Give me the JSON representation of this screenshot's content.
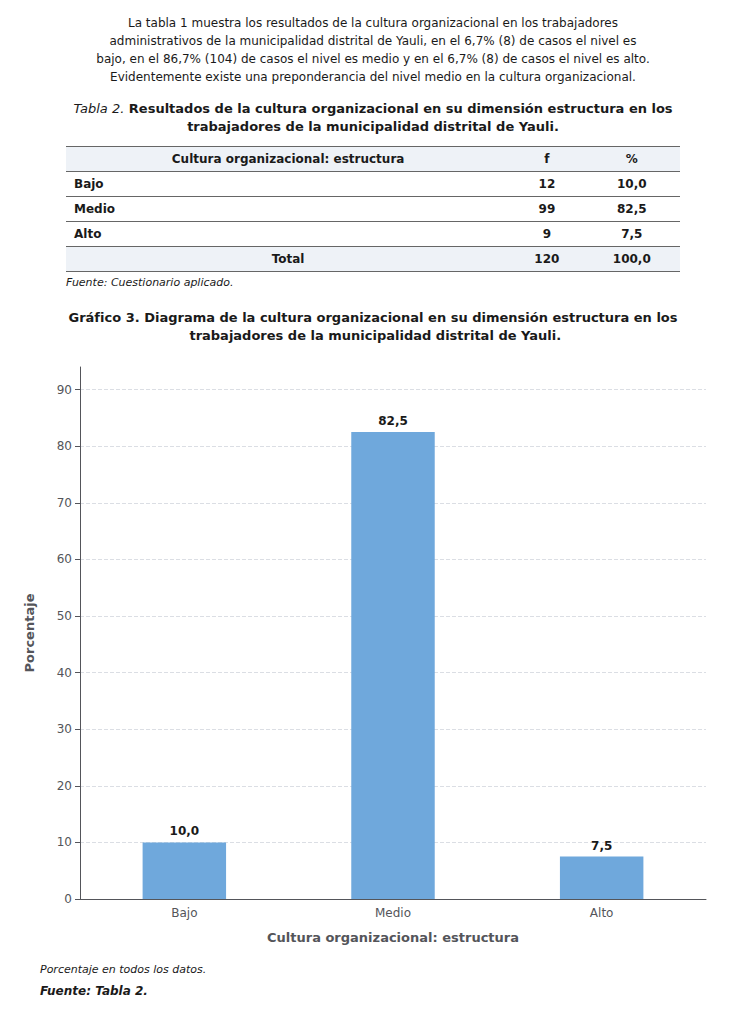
{
  "page": {
    "paragraph": [
      "La tabla 1 muestra los resultados de la cultura organizacional en los trabajadores",
      "administrativos de la municipalidad distrital de Yauli, en el 6,7% (8) de casos el nivel es",
      "bajo, en el 86,7% (104) de casos el nivel es medio y en el 6,7% (8) de casos el nivel es alto.",
      "Evidentemente existe una preponderancia del nivel medio en la cultura organizacional."
    ],
    "table": {
      "title": "Tabla 2. Resultados de la cultura organizacional en su dimensión estructura en los trabajadores de la municipalidad distrital de Yauli.",
      "header": [
        "Cultura organizacional: estructura",
        "f",
        "%"
      ],
      "rows": [
        [
          "Bajo",
          "12",
          "10,0"
        ],
        [
          "Medio",
          "99",
          "82,5"
        ],
        [
          "Alto",
          "9",
          "7,5"
        ]
      ],
      "total": [
        "Total",
        "120",
        "100,0"
      ],
      "source": "Fuente: Cuestionario aplicado."
    }
  },
  "chart_data": {
    "type": "bar",
    "title": "Gráfico 3. Diagrama de la cultura organizacional en su dimensión estructura en los trabajadores de la municipalidad distrital de Yauli.",
    "xlabel": "Cultura organizacional: estructura",
    "ylabel": "Porcentaje",
    "categories": [
      "Bajo",
      "Medio",
      "Alto"
    ],
    "values": [
      10.0,
      82.5,
      7.5
    ],
    "value_labels": [
      "10,0",
      "82,5",
      "7,5"
    ],
    "data_labels": true,
    "color": "#6fa8dc",
    "ylim": [
      0,
      94
    ],
    "yticks": [
      0,
      10,
      20,
      30,
      40,
      50,
      60,
      70,
      80,
      90
    ],
    "grid": true,
    "annotations": [
      "Porcentaje en todos los datos.",
      "Fuente: Tabla 2."
    ]
  }
}
